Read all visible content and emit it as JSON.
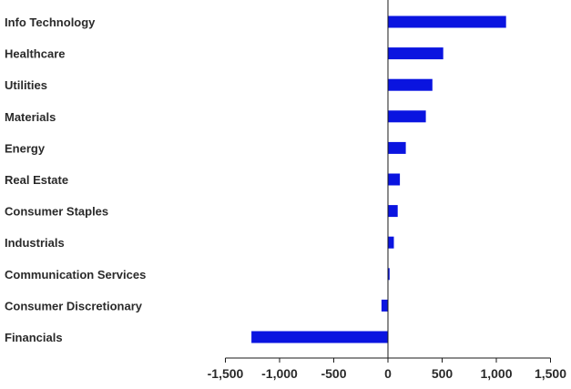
{
  "chart_data": {
    "type": "bar",
    "orientation": "horizontal",
    "categories": [
      "Info Technology",
      "Healthcare",
      "Utilities",
      "Materials",
      "Energy",
      "Real Estate",
      "Consumer Staples",
      "Industrials",
      "Communication Services",
      "Consumer Discretionary",
      "Financials"
    ],
    "values": [
      1090,
      510,
      410,
      350,
      165,
      110,
      90,
      55,
      15,
      -60,
      -1260
    ],
    "xlim": [
      -1500,
      1500
    ],
    "xticks": [
      -1500,
      -1000,
      -500,
      0,
      500,
      1000,
      1500
    ],
    "xtick_labels": [
      "-1,500",
      "-1,000",
      "-500",
      "0",
      "500",
      "1,000",
      "1,500"
    ],
    "title": "",
    "xlabel": "",
    "ylabel": "",
    "grid": false,
    "legend": "none",
    "bar_color": "#0a14e0",
    "axis_color": "#1a1a1a",
    "text_color": "#2a2a2a"
  }
}
